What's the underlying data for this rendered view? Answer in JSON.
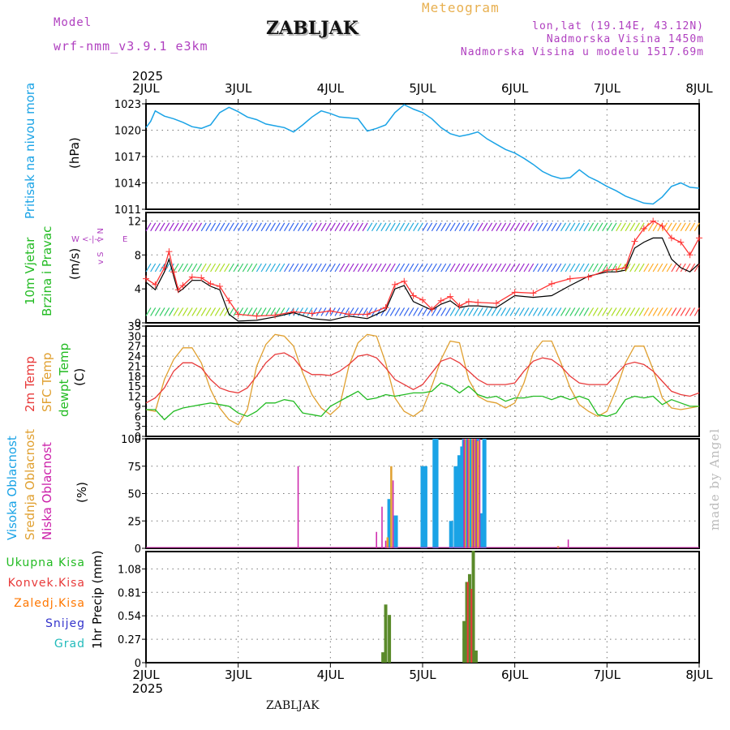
{
  "header": {
    "model_label": "Model",
    "model_name": "wrf-nmm_v3.9.1  e3km",
    "station": "ZABLJAK",
    "product": "Meteogram",
    "coords": "lon,lat (19.14E, 43.12N)",
    "elevation": "Nadmorska Visina 1450m",
    "model_elevation": "Nadmorska Visina u modelu 1517.69m",
    "credit": "made by Angel",
    "footer": "ZABLJAK"
  },
  "colors": {
    "pressure": "#1aa3e6",
    "wind_label": "#22bb22",
    "wind_speed": "#ff3333",
    "wind_gust": "#000000",
    "temp2m": "#e83a3a",
    "sfc_temp": "#e0a030",
    "dewpt": "#22bb22",
    "high_cloud": "#1aa3e6",
    "mid_cloud": "#e0a030",
    "low_cloud": "#cc22aa",
    "total_precip": "#5a8a2a",
    "conv_precip": "#e83a3a",
    "frozen_precip": "#ff7700",
    "snow": "#3333cc",
    "hail": "#22bbbb",
    "purple_text": "#b040c0"
  },
  "time_axis": {
    "year": "2025",
    "ticks": [
      "2JUL",
      "3JUL",
      "4JUL",
      "5JUL",
      "6JUL",
      "7JUL",
      "8JUL"
    ]
  },
  "chart_data": [
    {
      "type": "line",
      "title": "Pritisak na nivou mora",
      "ylabel": "Pritisak na nivou mora",
      "unit": "(hPa)",
      "ylim": [
        1011,
        1023
      ],
      "yticks": [
        1011,
        1014,
        1017,
        1020,
        1023
      ],
      "x": [
        0,
        0.05,
        0.1,
        0.2,
        0.3,
        0.4,
        0.5,
        0.6,
        0.7,
        0.8,
        0.9,
        1.0,
        1.1,
        1.2,
        1.3,
        1.4,
        1.5,
        1.6,
        1.7,
        1.8,
        1.9,
        2.0,
        2.1,
        2.2,
        2.3,
        2.4,
        2.5,
        2.6,
        2.7,
        2.8,
        2.9,
        3.0,
        3.1,
        3.2,
        3.3,
        3.4,
        3.5,
        3.6,
        3.7,
        3.8,
        3.9,
        4.0,
        4.1,
        4.2,
        4.3,
        4.4,
        4.5,
        4.6,
        4.7,
        4.8,
        4.9,
        5.0,
        5.1,
        5.2,
        5.3,
        5.4,
        5.5,
        5.6,
        5.7,
        5.8,
        5.9,
        6.0
      ],
      "values": [
        1020.3,
        1021.0,
        1022.2,
        1021.6,
        1021.3,
        1020.9,
        1020.4,
        1020.2,
        1020.6,
        1022.0,
        1022.6,
        1022.1,
        1021.5,
        1021.2,
        1020.7,
        1020.5,
        1020.3,
        1019.8,
        1020.6,
        1021.5,
        1022.2,
        1021.9,
        1021.5,
        1021.4,
        1021.3,
        1019.9,
        1020.2,
        1020.6,
        1022.0,
        1022.9,
        1022.4,
        1022.0,
        1021.3,
        1020.3,
        1019.6,
        1019.3,
        1019.5,
        1019.8,
        1019.0,
        1018.4,
        1017.8,
        1017.4,
        1016.8,
        1016.1,
        1015.3,
        1014.8,
        1014.5,
        1014.6,
        1015.5,
        1014.7,
        1014.2,
        1013.6,
        1013.1,
        1012.5,
        1012.1,
        1011.7,
        1011.6,
        1012.4,
        1013.6,
        1014.0,
        1013.5,
        1013.4
      ],
      "series": [
        {
          "name": "Pritisak na nivou mora"
        }
      ]
    },
    {
      "type": "line",
      "title": "10m Vjetar Brzina i Pravac",
      "ylabel_lines": [
        "10m Vjetar",
        "Brzina i Pravac"
      ],
      "unit": "(m/s)",
      "ylim": [
        0,
        13
      ],
      "yticks": [
        0,
        4,
        8,
        12
      ],
      "compass": [
        "N",
        "E",
        "W",
        "S"
      ],
      "compass_arrows": [
        "^",
        "->",
        "<-",
        "v"
      ],
      "x": [
        0,
        0.1,
        0.2,
        0.25,
        0.3,
        0.35,
        0.4,
        0.5,
        0.6,
        0.7,
        0.8,
        0.9,
        1.0,
        1.2,
        1.4,
        1.6,
        1.8,
        2.0,
        2.2,
        2.4,
        2.6,
        2.7,
        2.8,
        2.9,
        3.0,
        3.1,
        3.2,
        3.3,
        3.4,
        3.5,
        3.6,
        3.8,
        4.0,
        4.2,
        4.4,
        4.6,
        4.8,
        5.0,
        5.1,
        5.2,
        5.3,
        5.4,
        5.5,
        5.6,
        5.7,
        5.8,
        5.9,
        6.0
      ],
      "series": [
        {
          "name": "speed",
          "values": [
            5.2,
            4.5,
            6.5,
            8.4,
            6.0,
            3.9,
            4.4,
            5.4,
            5.3,
            4.6,
            4.3,
            2.6,
            1.0,
            0.8,
            0.9,
            1.3,
            1.1,
            1.4,
            1.0,
            1.0,
            1.8,
            4.5,
            4.9,
            3.2,
            2.7,
            1.6,
            2.6,
            3.1,
            2.0,
            2.5,
            2.4,
            2.3,
            3.6,
            3.5,
            4.6,
            5.2,
            5.4,
            6.2,
            6.3,
            6.5,
            9.6,
            11.1,
            12.0,
            11.4,
            10.0,
            9.5,
            8.0,
            10.0
          ]
        },
        {
          "name": "gust",
          "values": [
            4.8,
            3.9,
            6.0,
            7.5,
            5.5,
            3.6,
            4.0,
            5.0,
            5.0,
            4.3,
            3.9,
            1.0,
            0.2,
            0.3,
            0.7,
            1.2,
            0.5,
            0.3,
            0.8,
            0.5,
            1.5,
            4.0,
            4.4,
            2.5,
            2.0,
            1.5,
            2.2,
            2.6,
            1.8,
            2.0,
            2.0,
            1.8,
            3.2,
            3.0,
            3.2,
            4.4,
            5.5,
            6.0,
            6.0,
            6.2,
            8.8,
            9.5,
            10.0,
            10.0,
            7.5,
            6.5,
            6.0,
            7.0
          ]
        }
      ]
    },
    {
      "type": "line",
      "title": "2m Temp / SFC Temp / dewpt Temp",
      "ylabel_lines": [
        "2m Temp",
        "SFC Temp",
        "dewpt Temp"
      ],
      "unit": "(C)",
      "ylim": [
        0,
        33
      ],
      "yticks": [
        0,
        3,
        6,
        9,
        12,
        15,
        18,
        21,
        24,
        27,
        30,
        33
      ],
      "x": [
        0,
        0.1,
        0.2,
        0.3,
        0.4,
        0.5,
        0.6,
        0.7,
        0.8,
        0.9,
        1.0,
        1.1,
        1.2,
        1.3,
        1.4,
        1.5,
        1.6,
        1.7,
        1.8,
        1.9,
        2.0,
        2.1,
        2.2,
        2.3,
        2.4,
        2.5,
        2.6,
        2.7,
        2.8,
        2.9,
        3.0,
        3.1,
        3.2,
        3.3,
        3.4,
        3.5,
        3.6,
        3.7,
        3.8,
        3.9,
        4.0,
        4.1,
        4.2,
        4.3,
        4.4,
        4.5,
        4.6,
        4.7,
        4.8,
        4.9,
        5.0,
        5.1,
        5.2,
        5.3,
        5.4,
        5.5,
        5.6,
        5.7,
        5.8,
        5.9,
        6.0
      ],
      "series": [
        {
          "name": "2m Temp",
          "values": [
            10,
            11.5,
            14.5,
            19.5,
            22.0,
            22.0,
            20.5,
            17,
            14.5,
            13.5,
            13,
            14.5,
            18,
            22,
            24.5,
            25,
            23.5,
            20,
            18.5,
            18.5,
            18.2,
            19.5,
            21.5,
            24,
            24.5,
            23.5,
            20.5,
            17,
            15.5,
            14,
            15.5,
            19,
            22.5,
            23.5,
            22,
            19.5,
            17,
            15.5,
            15.5,
            15.5,
            16,
            19.5,
            22.5,
            23.5,
            23,
            21,
            18,
            16,
            15.5,
            15.5,
            15.5,
            18.5,
            21.5,
            22.2,
            21.5,
            19.5,
            16.5,
            13.5,
            12.5,
            12,
            13
          ]
        },
        {
          "name": "SFC Temp",
          "values": [
            8,
            7.5,
            17,
            23,
            26.5,
            26.5,
            22,
            14,
            8.5,
            5,
            3.5,
            8,
            21,
            27.5,
            30.5,
            30,
            27,
            19,
            12.5,
            8.5,
            6.5,
            9,
            21,
            28,
            30.5,
            30,
            22,
            11.5,
            7.5,
            6,
            8,
            15,
            23,
            28.5,
            28,
            17,
            12,
            10.5,
            10,
            8.5,
            10,
            16,
            25,
            28.5,
            28.5,
            22,
            14.5,
            9.5,
            7.5,
            6,
            7.5,
            14,
            22,
            27,
            27,
            20,
            11.5,
            8.5,
            8,
            8.5,
            9
          ]
        },
        {
          "name": "dewpt Temp",
          "values": [
            8,
            8,
            5,
            7.5,
            8.5,
            9,
            9.5,
            10,
            9.5,
            9,
            7,
            6,
            7.5,
            10,
            10,
            11,
            10.5,
            7,
            6.5,
            6,
            9,
            10.5,
            12,
            13.5,
            11,
            11.5,
            12.5,
            12,
            12.5,
            13,
            13,
            13.5,
            16,
            15,
            13,
            15,
            12.5,
            11.5,
            12,
            10.5,
            11.5,
            11.5,
            12,
            12,
            11,
            12,
            11,
            12,
            11,
            6.5,
            6,
            7,
            11,
            12,
            11.5,
            12,
            9.5,
            11,
            10,
            9,
            9
          ]
        }
      ]
    },
    {
      "type": "bar",
      "title": "Oblacnost",
      "ylabel_lines": [
        "Visoka Oblacnost",
        "Srednja Oblacnost",
        "Niska Oblacnost"
      ],
      "unit": "(%)",
      "ylim": [
        0,
        100
      ],
      "yticks": [
        0,
        25,
        50,
        75,
        100
      ],
      "series": [
        {
          "name": "Visoka Oblacnost",
          "x": [
            2.64,
            2.71,
            3.0,
            3.03,
            3.13,
            3.15,
            3.31,
            3.36,
            3.4,
            3.43,
            3.45,
            3.48,
            3.51,
            3.53,
            3.56,
            3.59,
            3.64,
            3.67
          ],
          "values": [
            45,
            30,
            75,
            75,
            100,
            100,
            25,
            75,
            85,
            93,
            100,
            100,
            100,
            100,
            100,
            100,
            32,
            100
          ]
        },
        {
          "name": "Srednja Oblacnost",
          "x": [
            2.62,
            2.66,
            3.46,
            3.5,
            3.54,
            3.57,
            3.6,
            4.47
          ],
          "values": [
            10,
            75,
            100,
            100,
            100,
            100,
            98,
            2
          ]
        },
        {
          "name": "Niska Oblacnost",
          "x": [
            1.65,
            2.5,
            2.56,
            2.6,
            2.68,
            3.45,
            3.49,
            3.55,
            3.58,
            3.62,
            4.58
          ],
          "values": [
            75,
            15,
            38,
            7,
            62,
            100,
            100,
            100,
            100,
            100,
            8
          ]
        }
      ]
    },
    {
      "type": "bar",
      "title": "1hr Precip",
      "ylabel_lines": [
        "1hr Precip"
      ],
      "unit": "(mm)",
      "legend": [
        "Ukupna Kisa",
        "Konvek.Kisa",
        "Zaledj.Kisa",
        "Snijeg",
        "Grad"
      ],
      "ylim": [
        0,
        1.28
      ],
      "yticks": [
        0,
        0.27,
        0.54,
        0.81,
        1.08
      ],
      "ytick_labels": [
        "0",
        "0.27",
        "0.54",
        "0.81",
        "1.08"
      ],
      "series": [
        {
          "name": "Ukupna Kisa",
          "x": [
            2.57,
            2.6,
            2.64,
            3.45,
            3.48,
            3.51,
            3.55,
            3.58,
            3.62
          ],
          "values": [
            0.12,
            0.67,
            0.55,
            0.48,
            0.93,
            1.02,
            1.29,
            0.14,
            0
          ]
        },
        {
          "name": "Konvek.Kisa",
          "x": [
            3.49,
            3.53
          ],
          "values": [
            0.93,
            0.85
          ]
        }
      ]
    }
  ]
}
